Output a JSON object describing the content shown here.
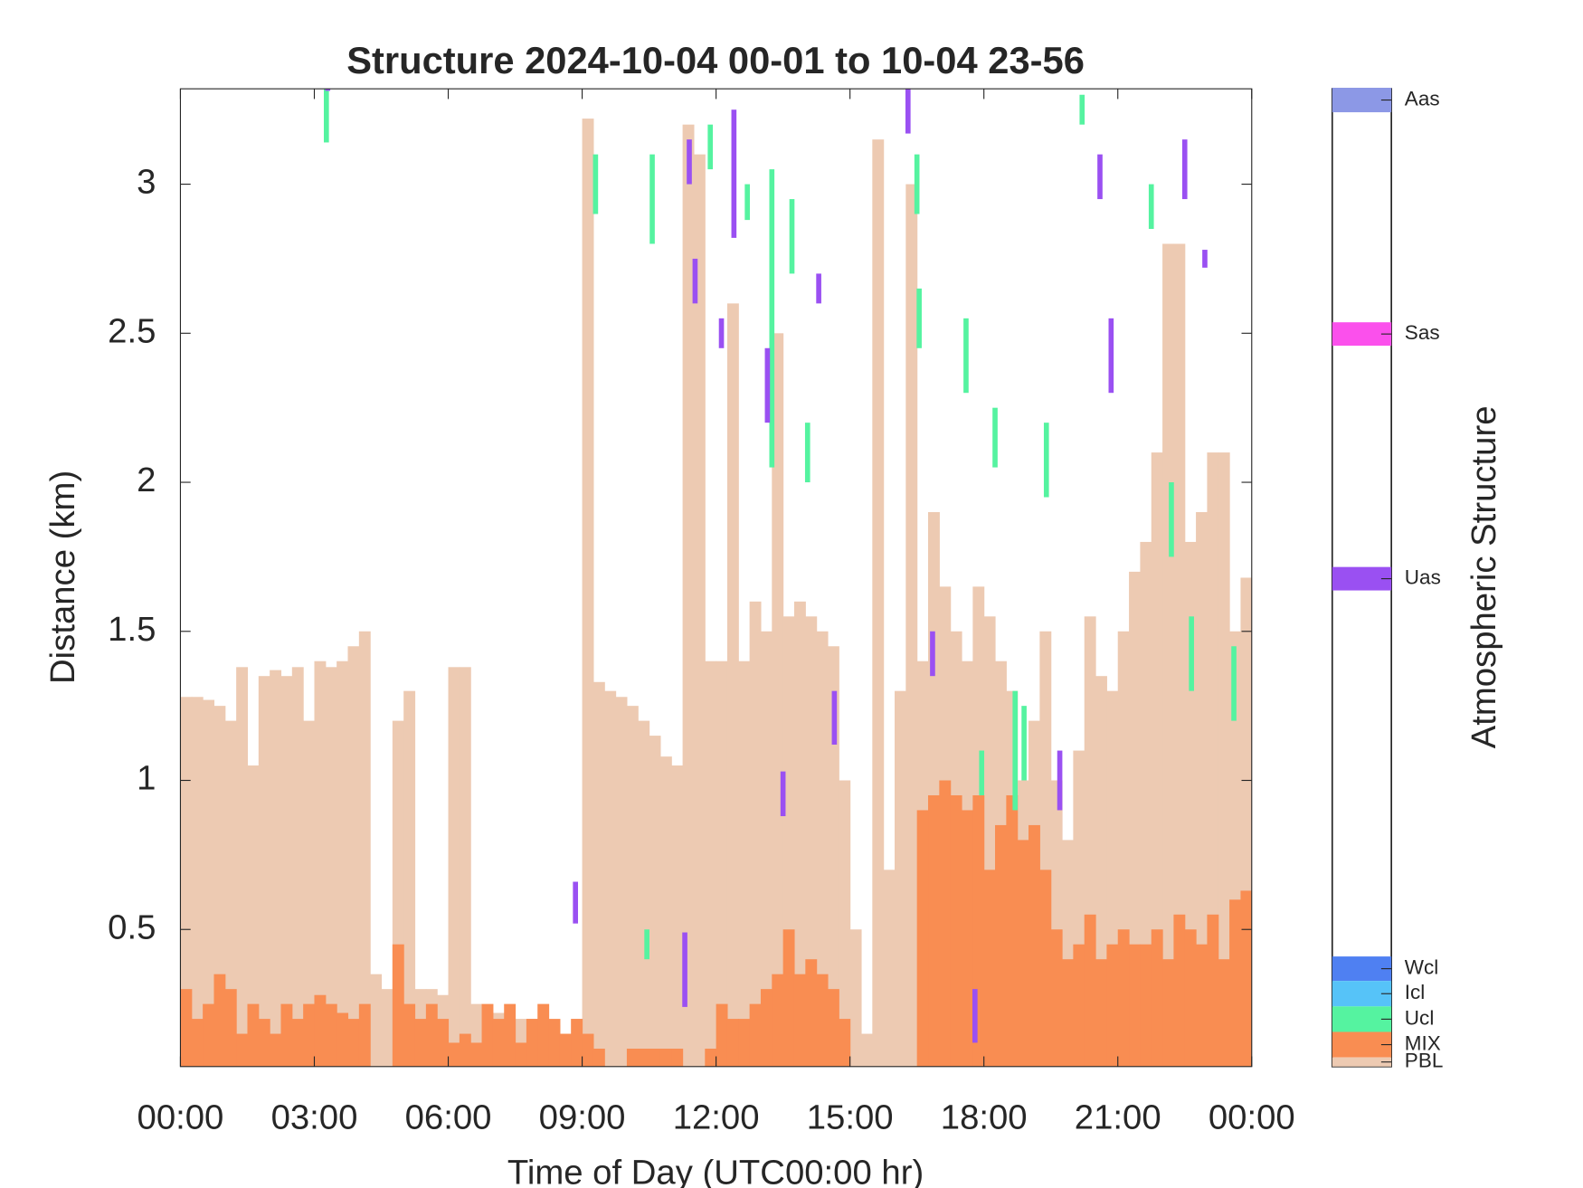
{
  "chart_data": {
    "type": "structure",
    "title": "Structure 2024-10-04 00-01 to 10-04 23-56",
    "xlabel": "Time of Day (UTC00:00 hr)",
    "ylabel": "Distance (km)",
    "colorbar_label": "Atmospheric Structure",
    "xlim": [
      0,
      24
    ],
    "ylim": [
      0.04,
      3.32
    ],
    "xticks": [
      {
        "value": 0,
        "label": "00:00"
      },
      {
        "value": 3,
        "label": "03:00"
      },
      {
        "value": 6,
        "label": "06:00"
      },
      {
        "value": 9,
        "label": "09:00"
      },
      {
        "value": 12,
        "label": "12:00"
      },
      {
        "value": 15,
        "label": "15:00"
      },
      {
        "value": 18,
        "label": "18:00"
      },
      {
        "value": 21,
        "label": "21:00"
      },
      {
        "value": 24,
        "label": "00:00"
      }
    ],
    "yticks": [
      0.5,
      1,
      1.5,
      2,
      2.5,
      3
    ],
    "x": [
      0,
      0.25,
      0.5,
      0.75,
      1,
      1.25,
      1.5,
      1.75,
      2,
      2.25,
      2.5,
      2.75,
      3,
      3.25,
      3.5,
      3.75,
      4,
      4.25,
      4.5,
      4.75,
      5,
      5.25,
      5.5,
      5.75,
      6,
      6.25,
      6.5,
      6.75,
      7,
      7.25,
      7.5,
      7.75,
      8,
      8.25,
      8.5,
      8.75,
      9,
      9.25,
      9.5,
      9.75,
      10,
      10.25,
      10.5,
      10.75,
      11,
      11.25,
      11.5,
      11.75,
      12,
      12.25,
      12.5,
      12.75,
      13,
      13.25,
      13.5,
      13.75,
      14,
      14.25,
      14.5,
      14.75,
      15,
      15.25,
      15.5,
      15.75,
      16,
      16.25,
      16.5,
      16.75,
      17,
      17.25,
      17.5,
      17.75,
      18,
      18.25,
      18.5,
      18.75,
      19,
      19.25,
      19.5,
      19.75,
      20,
      20.25,
      20.5,
      20.75,
      21,
      21.25,
      21.5,
      21.75,
      22,
      22.25,
      22.5,
      22.75,
      23,
      23.25,
      23.5,
      23.75
    ],
    "series": [
      {
        "name": "Aas",
        "color": "#8c98e6"
      },
      {
        "name": "Sas",
        "color": "#fb50ec"
      },
      {
        "name": "Uas",
        "color": "#9a50f2",
        "x": [
          3.3,
          8.85,
          11.3,
          11.53,
          11.4,
          12.4,
          12.12,
          13.15,
          13.5,
          14.3,
          14.65,
          16.85,
          17.8,
          20.85,
          20.6,
          22.5,
          22.95,
          19.7,
          16.3
        ],
        "bottom": [
          3.32,
          0.52,
          0.24,
          2.6,
          3.0,
          2.82,
          2.45,
          2.2,
          0.88,
          2.6,
          1.12,
          1.35,
          0.12,
          2.3,
          2.95,
          2.95,
          2.72,
          0.9,
          3.17
        ],
        "top": [
          3.32,
          0.66,
          0.49,
          2.75,
          3.15,
          3.25,
          2.55,
          2.45,
          1.03,
          2.7,
          1.3,
          1.5,
          0.3,
          2.55,
          3.1,
          3.15,
          2.78,
          1.1,
          3.32
        ]
      },
      {
        "name": "Wcl",
        "color": "#4f80f2"
      },
      {
        "name": "Icl",
        "color": "#56c3f8"
      },
      {
        "name": "Ucl",
        "color": "#55f3a0",
        "x": [
          3.27,
          9.3,
          10.57,
          10.45,
          11.87,
          12.7,
          13.25,
          13.7,
          14.05,
          16.5,
          16.55,
          17.6,
          18.25,
          19.4,
          20.2,
          21.75,
          22.2,
          22.65,
          23.6,
          18.7,
          18.9,
          17.95
        ],
        "bottom": [
          3.14,
          2.9,
          2.8,
          0.4,
          3.05,
          2.88,
          2.05,
          2.7,
          2.0,
          2.9,
          2.45,
          2.3,
          2.05,
          1.95,
          3.2,
          2.85,
          1.75,
          1.3,
          1.2,
          0.9,
          1.0,
          0.95
        ],
        "top": [
          3.32,
          3.1,
          3.1,
          0.5,
          3.2,
          3.0,
          3.05,
          2.95,
          2.2,
          3.1,
          2.65,
          2.55,
          2.25,
          2.2,
          3.3,
          3.0,
          2.0,
          1.55,
          1.45,
          1.3,
          1.25,
          1.1
        ]
      },
      {
        "name": "MIX",
        "color": "#f98d52",
        "values": [
          0.3,
          0.2,
          0.25,
          0.35,
          0.3,
          0.15,
          0.25,
          0.2,
          0.15,
          0.25,
          0.2,
          0.25,
          0.28,
          0.25,
          0.22,
          0.2,
          0.25,
          null,
          null,
          0.45,
          0.25,
          0.2,
          0.25,
          0.2,
          0.12,
          0.15,
          0.12,
          0.25,
          0.2,
          0.25,
          0.12,
          0.2,
          0.25,
          0.2,
          0.15,
          0.2,
          0.15,
          0.1,
          null,
          null,
          0.1,
          0.1,
          0.1,
          0.1,
          0.1,
          null,
          null,
          0.1,
          0.25,
          0.2,
          0.2,
          0.25,
          0.3,
          0.35,
          0.5,
          0.35,
          0.4,
          0.35,
          0.3,
          0.2,
          null,
          null,
          null,
          null,
          null,
          null,
          0.9,
          0.95,
          1.0,
          0.95,
          0.9,
          0.95,
          0.7,
          0.85,
          0.95,
          0.8,
          0.85,
          0.7,
          0.5,
          0.4,
          0.45,
          0.55,
          0.4,
          0.45,
          0.5,
          0.45,
          0.45,
          0.5,
          0.4,
          0.55,
          0.5,
          0.45,
          0.55,
          0.4,
          0.6,
          0.63
        ]
      },
      {
        "name": "PBL",
        "color": "#edcab2",
        "values": [
          1.28,
          1.28,
          1.27,
          1.25,
          1.2,
          1.38,
          1.05,
          1.35,
          1.37,
          1.35,
          1.38,
          1.2,
          1.4,
          1.38,
          1.4,
          1.45,
          1.5,
          0.35,
          0.3,
          1.2,
          1.3,
          0.3,
          0.3,
          0.28,
          1.38,
          1.38,
          0.25,
          0.22,
          0.22,
          0.2,
          0.2,
          0.2,
          0.18,
          0.18,
          0.15,
          0.2,
          3.22,
          1.33,
          1.3,
          1.28,
          1.25,
          1.2,
          1.15,
          1.08,
          1.05,
          3.2,
          3.1,
          1.4,
          1.4,
          2.6,
          1.4,
          1.6,
          1.5,
          2.5,
          1.55,
          1.6,
          1.55,
          1.5,
          1.45,
          1.0,
          0.5,
          0.15,
          3.15,
          0.7,
          1.3,
          3.0,
          1.4,
          1.9,
          1.65,
          1.5,
          1.4,
          1.65,
          1.55,
          1.4,
          1.3,
          1.0,
          1.2,
          1.5,
          1.0,
          0.8,
          1.1,
          1.55,
          1.35,
          1.3,
          1.5,
          1.7,
          1.8,
          2.1,
          2.8,
          2.8,
          1.8,
          1.9,
          2.1,
          2.1,
          1.5,
          1.68
        ]
      }
    ]
  }
}
